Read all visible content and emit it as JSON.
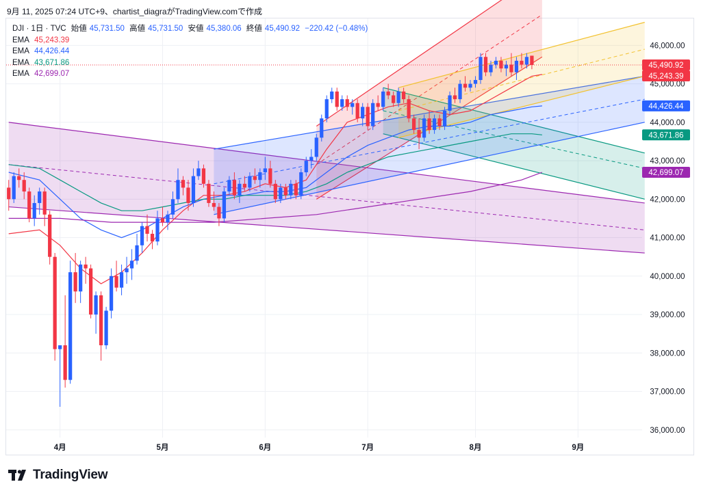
{
  "header": {
    "text": "9月 11, 2025 07:24 UTC+9、chartist_diagraがTradingView.comで作成"
  },
  "legend": {
    "symbol": "DJI · 1日 · TVC",
    "open_label": "始値",
    "open": "45,731.50",
    "high_label": "高値",
    "high": "45,731.50",
    "low_label": "安値",
    "low": "45,380.06",
    "close_label": "終値",
    "close": "45,490.92",
    "change": "−220.42 (−0.48%)",
    "ema_rows": [
      {
        "label": "EMA",
        "value": "45,243.39",
        "color": "#f23645"
      },
      {
        "label": "EMA",
        "value": "44,426.44",
        "color": "#2962ff"
      },
      {
        "label": "EMA",
        "value": "43,671.86",
        "color": "#089981"
      },
      {
        "label": "EMA",
        "value": "42,699.07",
        "color": "#9c27b0"
      }
    ]
  },
  "footer": {
    "brand": "TradingView"
  },
  "chart_data": {
    "type": "candlestick",
    "symbol": "DJI",
    "timeframe": "1日",
    "ylim": [
      35800,
      46700
    ],
    "y_ticks": [
      36000,
      37000,
      38000,
      39000,
      40000,
      41000,
      42000,
      43000,
      44000,
      45000,
      46000
    ],
    "y_tick_labels": [
      "36,000.00",
      "37,000.00",
      "38,000.00",
      "39,000.00",
      "40,000.00",
      "41,000.00",
      "42,000.00",
      "43,000.00",
      "44,000.00",
      "45,000.00",
      "46,000.00"
    ],
    "x_ticks": [
      {
        "label": "4月",
        "index": 10
      },
      {
        "label": "5月",
        "index": 30
      },
      {
        "label": "6月",
        "index": 50
      },
      {
        "label": "7月",
        "index": 70
      },
      {
        "label": "8月",
        "index": 91
      },
      {
        "label": "9月",
        "index": 111
      }
    ],
    "n_slots": 124,
    "price_labels": [
      {
        "value": 45490.92,
        "text": "45,490.92",
        "color": "#f23645"
      },
      {
        "value": 45243.39,
        "text": "45,243.39",
        "color": "#f23645"
      },
      {
        "value": 44426.44,
        "text": "44,426.44",
        "color": "#2962ff"
      },
      {
        "value": 43671.86,
        "text": "43,671.86",
        "color": "#089981"
      },
      {
        "value": 42699.07,
        "text": "42,699.07",
        "color": "#9c27b0"
      }
    ],
    "last_price": 45490.92,
    "candles": [
      [
        42300,
        42500,
        41700,
        42000
      ],
      [
        42000,
        42700,
        41900,
        42600
      ],
      [
        42600,
        42800,
        42300,
        42500
      ],
      [
        42500,
        42700,
        42000,
        42200
      ],
      [
        42200,
        42300,
        41400,
        41500
      ],
      [
        41500,
        42100,
        41300,
        41900
      ],
      [
        41900,
        42300,
        41600,
        42200
      ],
      [
        42200,
        42300,
        41300,
        41600
      ],
      [
        41600,
        41700,
        40300,
        40500
      ],
      [
        40500,
        40600,
        37800,
        38100
      ],
      [
        38100,
        38200,
        36600,
        38200
      ],
      [
        38200,
        39500,
        37100,
        37300
      ],
      [
        37300,
        40400,
        37200,
        40100
      ],
      [
        40100,
        40600,
        39300,
        39600
      ],
      [
        39600,
        40400,
        39300,
        40300
      ],
      [
        40300,
        40500,
        39800,
        40200
      ],
      [
        40200,
        40300,
        38900,
        39000
      ],
      [
        39000,
        39600,
        38500,
        39500
      ],
      [
        39500,
        39600,
        37800,
        38200
      ],
      [
        38200,
        39200,
        38100,
        39100
      ],
      [
        39100,
        40200,
        38900,
        40000
      ],
      [
        40000,
        40400,
        39600,
        39700
      ],
      [
        39700,
        40300,
        39500,
        40100
      ],
      [
        40100,
        40500,
        39800,
        40200
      ],
      [
        40200,
        40700,
        39900,
        40400
      ],
      [
        40400,
        41100,
        40300,
        40800
      ],
      [
        40800,
        41400,
        40600,
        41300
      ],
      [
        41300,
        41600,
        40900,
        41100
      ],
      [
        41100,
        41200,
        40700,
        40900
      ],
      [
        40900,
        41700,
        40800,
        41500
      ],
      [
        41500,
        41800,
        41300,
        41400
      ],
      [
        41400,
        41700,
        41200,
        41600
      ],
      [
        41600,
        42200,
        41500,
        42000
      ],
      [
        42000,
        42800,
        41900,
        42500
      ],
      [
        42500,
        42600,
        42100,
        42300
      ],
      [
        42300,
        42500,
        41700,
        41900
      ],
      [
        41900,
        42800,
        41800,
        42600
      ],
      [
        42600,
        43000,
        42500,
        42800
      ],
      [
        42800,
        42900,
        42300,
        42400
      ],
      [
        42400,
        42500,
        41800,
        41900
      ],
      [
        41900,
        42200,
        41700,
        41800
      ],
      [
        41800,
        41900,
        41300,
        41500
      ],
      [
        41500,
        42300,
        41400,
        42200
      ],
      [
        42200,
        42600,
        42100,
        42500
      ],
      [
        42500,
        42700,
        42000,
        42100
      ],
      [
        42100,
        42500,
        41900,
        42400
      ],
      [
        42400,
        42600,
        42200,
        42300
      ],
      [
        42300,
        42700,
        42200,
        42600
      ],
      [
        42600,
        42800,
        42400,
        42500
      ],
      [
        42500,
        42800,
        42300,
        42700
      ],
      [
        42700,
        43100,
        42500,
        42800
      ],
      [
        42800,
        43000,
        42300,
        42400
      ],
      [
        42400,
        42500,
        41900,
        42000
      ],
      [
        42000,
        42400,
        41900,
        42300
      ],
      [
        42300,
        42400,
        42000,
        42100
      ],
      [
        42100,
        42500,
        42000,
        42400
      ],
      [
        42400,
        42500,
        42000,
        42100
      ],
      [
        42100,
        42800,
        42000,
        42700
      ],
      [
        42700,
        43100,
        42600,
        43000
      ],
      [
        43000,
        43300,
        42800,
        43100
      ],
      [
        43100,
        43700,
        43000,
        43600
      ],
      [
        43600,
        44200,
        43500,
        44100
      ],
      [
        44100,
        44700,
        44000,
        44600
      ],
      [
        44600,
        44900,
        44500,
        44800
      ],
      [
        44800,
        44900,
        44300,
        44400
      ],
      [
        44400,
        44700,
        44300,
        44600
      ],
      [
        44600,
        44700,
        44300,
        44400
      ],
      [
        44400,
        44600,
        44200,
        44500
      ],
      [
        44500,
        44600,
        44000,
        44100
      ],
      [
        44100,
        44500,
        43900,
        44400
      ],
      [
        44400,
        44500,
        43800,
        43900
      ],
      [
        43900,
        44600,
        43800,
        44500
      ],
      [
        44500,
        44700,
        44300,
        44400
      ],
      [
        44400,
        44900,
        44300,
        44800
      ],
      [
        44800,
        45000,
        44600,
        44700
      ],
      [
        44700,
        44800,
        44400,
        44500
      ],
      [
        44500,
        44900,
        44400,
        44800
      ],
      [
        44800,
        44900,
        44500,
        44600
      ],
      [
        44600,
        44700,
        44000,
        44100
      ],
      [
        44100,
        44200,
        43700,
        43800
      ],
      [
        43800,
        44100,
        43300,
        43600
      ],
      [
        43600,
        44200,
        43500,
        44100
      ],
      [
        44100,
        44300,
        43700,
        43800
      ],
      [
        43800,
        44200,
        43700,
        44100
      ],
      [
        44100,
        44200,
        43800,
        43900
      ],
      [
        43900,
        44400,
        43800,
        44300
      ],
      [
        44300,
        44800,
        44200,
        44700
      ],
      [
        44700,
        44900,
        44500,
        44600
      ],
      [
        44600,
        45100,
        44500,
        45000
      ],
      [
        45000,
        45200,
        44800,
        44900
      ],
      [
        44900,
        45100,
        44800,
        45000
      ],
      [
        45000,
        45200,
        44900,
        45100
      ],
      [
        45100,
        45800,
        45000,
        45700
      ],
      [
        45700,
        45800,
        45200,
        45300
      ],
      [
        45300,
        45600,
        45200,
        45500
      ],
      [
        45500,
        45700,
        45400,
        45600
      ],
      [
        45600,
        45700,
        45300,
        45400
      ],
      [
        45400,
        45600,
        45200,
        45500
      ],
      [
        45500,
        45800,
        45200,
        45300
      ],
      [
        45300,
        45700,
        45100,
        45600
      ],
      [
        45600,
        45800,
        45400,
        45500
      ],
      [
        45500,
        45800,
        45400,
        45700
      ],
      [
        45731.5,
        45731.5,
        45380.06,
        45490.92
      ]
    ],
    "candle_start_index": 0,
    "ema_series": [
      {
        "name": "EMA",
        "value": 45243.39,
        "color": "#f23645",
        "points": [
          [
            0,
            41100
          ],
          [
            6,
            41200
          ],
          [
            10,
            40800
          ],
          [
            14,
            40200
          ],
          [
            18,
            39800
          ],
          [
            22,
            40100
          ],
          [
            26,
            40600
          ],
          [
            30,
            41200
          ],
          [
            34,
            41700
          ],
          [
            38,
            42100
          ],
          [
            42,
            42100
          ],
          [
            46,
            42200
          ],
          [
            50,
            42400
          ],
          [
            54,
            42300
          ],
          [
            58,
            42500
          ],
          [
            62,
            43300
          ],
          [
            66,
            44000
          ],
          [
            70,
            44200
          ],
          [
            74,
            44400
          ],
          [
            78,
            44500
          ],
          [
            82,
            44300
          ],
          [
            86,
            44200
          ],
          [
            90,
            44300
          ],
          [
            94,
            44600
          ],
          [
            98,
            44900
          ],
          [
            102,
            45200
          ],
          [
            104,
            45243
          ]
        ]
      },
      {
        "name": "EMA",
        "value": 44426.44,
        "color": "#2962ff",
        "points": [
          [
            0,
            42700
          ],
          [
            6,
            42500
          ],
          [
            10,
            42000
          ],
          [
            14,
            41500
          ],
          [
            18,
            41200
          ],
          [
            22,
            41000
          ],
          [
            26,
            41200
          ],
          [
            30,
            41500
          ],
          [
            34,
            41800
          ],
          [
            38,
            42000
          ],
          [
            42,
            42100
          ],
          [
            46,
            42100
          ],
          [
            50,
            42200
          ],
          [
            54,
            42200
          ],
          [
            58,
            42300
          ],
          [
            62,
            42700
          ],
          [
            66,
            43100
          ],
          [
            70,
            43400
          ],
          [
            74,
            43600
          ],
          [
            78,
            43800
          ],
          [
            82,
            43900
          ],
          [
            86,
            43900
          ],
          [
            90,
            44000
          ],
          [
            94,
            44200
          ],
          [
            98,
            44300
          ],
          [
            102,
            44400
          ],
          [
            104,
            44426
          ]
        ]
      },
      {
        "name": "EMA",
        "value": 43671.86,
        "color": "#089981",
        "points": [
          [
            0,
            42900
          ],
          [
            6,
            42800
          ],
          [
            10,
            42500
          ],
          [
            14,
            42200
          ],
          [
            18,
            41900
          ],
          [
            22,
            41700
          ],
          [
            26,
            41700
          ],
          [
            30,
            41800
          ],
          [
            34,
            41900
          ],
          [
            38,
            42000
          ],
          [
            42,
            42000
          ],
          [
            46,
            42100
          ],
          [
            50,
            42100
          ],
          [
            54,
            42100
          ],
          [
            58,
            42200
          ],
          [
            62,
            42400
          ],
          [
            66,
            42700
          ],
          [
            70,
            42900
          ],
          [
            74,
            43100
          ],
          [
            78,
            43200
          ],
          [
            82,
            43300
          ],
          [
            86,
            43400
          ],
          [
            90,
            43500
          ],
          [
            94,
            43600
          ],
          [
            98,
            43700
          ],
          [
            102,
            43700
          ],
          [
            104,
            43672
          ]
        ]
      },
      {
        "name": "EMA",
        "value": 42699.07,
        "color": "#9c27b0",
        "points": [
          [
            0,
            41500
          ],
          [
            10,
            41500
          ],
          [
            20,
            41400
          ],
          [
            30,
            41400
          ],
          [
            40,
            41400
          ],
          [
            50,
            41500
          ],
          [
            60,
            41600
          ],
          [
            70,
            41800
          ],
          [
            80,
            42000
          ],
          [
            90,
            42200
          ],
          [
            100,
            42500
          ],
          [
            104,
            42699
          ]
        ]
      }
    ],
    "channels": [
      {
        "color": "#9c27b0",
        "top": [
          [
            0,
            44000
          ],
          [
            124,
            41900
          ]
        ],
        "mid": [
          [
            0,
            42900
          ],
          [
            124,
            41200
          ]
        ],
        "bottom": [
          [
            0,
            41800
          ],
          [
            124,
            40600
          ]
        ]
      },
      {
        "color": "#f23645",
        "top": [
          [
            60,
            43900
          ],
          [
            104,
            47900
          ]
        ],
        "mid": [
          [
            60,
            42900
          ],
          [
            104,
            46800
          ]
        ],
        "bottom": [
          [
            60,
            42000
          ],
          [
            104,
            45700
          ]
        ]
      },
      {
        "color": "#089981",
        "top": [
          [
            73,
            44900
          ],
          [
            124,
            43200
          ]
        ],
        "mid": [
          [
            73,
            44300
          ],
          [
            124,
            42800
          ]
        ],
        "bottom": [
          [
            73,
            43700
          ],
          [
            124,
            42000
          ]
        ]
      },
      {
        "color": "#2962ff",
        "top": [
          [
            40,
            43300
          ],
          [
            124,
            45200
          ]
        ],
        "mid": [
          [
            40,
            42400
          ],
          [
            124,
            44600
          ]
        ],
        "bottom": [
          [
            40,
            41600
          ],
          [
            124,
            44000
          ]
        ]
      },
      {
        "color": "#f2c12e",
        "top": [
          [
            76,
            44900
          ],
          [
            124,
            46600
          ]
        ],
        "mid": [
          [
            76,
            44300
          ],
          [
            124,
            45900
          ]
        ],
        "bottom": [
          [
            76,
            43600
          ],
          [
            124,
            45200
          ]
        ]
      }
    ]
  }
}
